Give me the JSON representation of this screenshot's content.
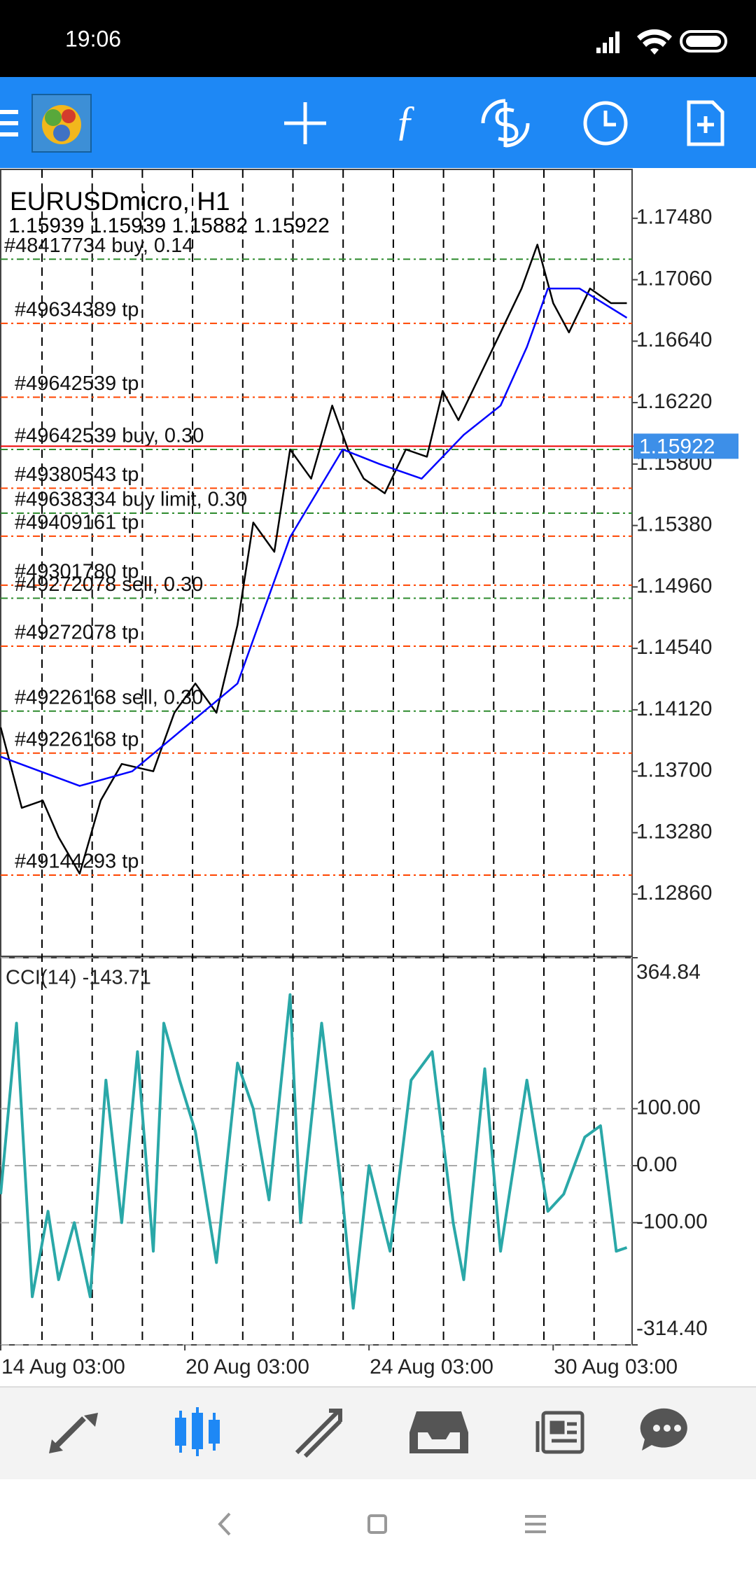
{
  "status_bar": {
    "time": "19:06"
  },
  "chart_data": [
    {
      "type": "line",
      "title": "EURUSDmicro, H1",
      "quote": "1.15939 1.15939 1.15882 1.15922",
      "xlim": [
        0,
        120
      ],
      "ylim": [
        1.12435,
        1.17814
      ],
      "yticks": [
        {
          "value": 1.1748,
          "label": "1.17480"
        },
        {
          "value": 1.1706,
          "label": "1.17060"
        },
        {
          "value": 1.1664,
          "label": "1.16640"
        },
        {
          "value": 1.1622,
          "label": "1.16220"
        },
        {
          "value": 1.158,
          "label": "1.15800"
        },
        {
          "value": 1.1538,
          "label": "1.15380"
        },
        {
          "value": 1.1496,
          "label": "1.14960"
        },
        {
          "value": 1.1454,
          "label": "1.14540"
        },
        {
          "value": 1.1412,
          "label": "1.14120"
        },
        {
          "value": 1.137,
          "label": "1.13700"
        },
        {
          "value": 1.1328,
          "label": "1.13280"
        },
        {
          "value": 1.1286,
          "label": "1.12860"
        }
      ],
      "current_price": 1.15922,
      "series": [
        {
          "color": "#000000",
          "x": [
            0,
            4,
            8,
            11,
            15,
            19,
            23,
            29,
            33,
            37,
            41,
            45,
            48,
            52,
            55,
            59,
            63,
            66,
            69,
            73,
            77,
            81,
            84,
            87,
            91,
            95,
            99,
            102,
            105,
            108,
            112,
            116,
            119
          ],
          "values": [
            1.14,
            1.1345,
            1.135,
            1.1325,
            1.13,
            1.135,
            1.1375,
            1.137,
            1.141,
            1.143,
            1.141,
            1.147,
            1.154,
            1.152,
            1.159,
            1.157,
            1.162,
            1.159,
            1.157,
            1.156,
            1.159,
            1.1585,
            1.163,
            1.161,
            1.164,
            1.167,
            1.17,
            1.173,
            1.169,
            1.167,
            1.17,
            1.169,
            1.169
          ]
        },
        {
          "color": "#0000ff",
          "x": [
            0,
            15,
            25,
            35,
            45,
            50,
            55,
            60,
            65,
            72,
            80,
            88,
            95,
            100,
            104,
            110,
            119
          ],
          "values": [
            1.138,
            1.136,
            1.137,
            1.14,
            1.143,
            1.148,
            1.153,
            1.156,
            1.159,
            1.158,
            1.157,
            1.16,
            1.162,
            1.166,
            1.17,
            1.17,
            1.168
          ]
        }
      ],
      "orders": [
        {
          "label": "#48417734 buy, 0.14",
          "price": 1.172,
          "color": "#2e8b2e"
        },
        {
          "label": "#49634389 tp",
          "price": 1.16762,
          "color": "#ff4500"
        },
        {
          "label": "#49642539 tp",
          "price": 1.16257,
          "color": "#ff4500"
        },
        {
          "label": "#49642539 buy, 0.30",
          "price": 1.159,
          "color": "#2e8b2e"
        },
        {
          "label": "#49380543 tp",
          "price": 1.15635,
          "color": "#ff4500"
        },
        {
          "label": "#49638334 buy limit, 0.30",
          "price": 1.15464,
          "color": "#2e8b2e"
        },
        {
          "label": "#49409161 tp",
          "price": 1.15307,
          "color": "#ff4500"
        },
        {
          "label": "#49301780 tp",
          "price": 1.14972,
          "color": "#ff4500"
        },
        {
          "label": "#49272078 sell, 0.30",
          "price": 1.14883,
          "color": "#2e8b2e"
        },
        {
          "label": "#49272078 tp",
          "price": 1.14555,
          "color": "#ff4500"
        },
        {
          "label": "#49226168 sell, 0.30",
          "price": 1.14111,
          "color": "#2e8b2e"
        },
        {
          "label": "#49226168 tp",
          "price": 1.13824,
          "color": "#ff4500"
        },
        {
          "label": "#49144293 tp",
          "price": 1.1299,
          "color": "#ff4500"
        }
      ]
    },
    {
      "type": "line",
      "title": "CCI(14) -143.71",
      "xlim": [
        0,
        120
      ],
      "ylim": [
        -314.4,
        364.84
      ],
      "yticks": [
        {
          "value": 364.84,
          "label": "364.84"
        },
        {
          "value": 100,
          "label": "100.00"
        },
        {
          "value": 0,
          "label": "0.00"
        },
        {
          "value": -100,
          "label": "-100.00"
        },
        {
          "value": -314.4,
          "label": "-314.40"
        }
      ],
      "xticks": [
        {
          "value": 0,
          "label": "14 Aug 03:00"
        },
        {
          "value": 35,
          "label": "20 Aug 03:00"
        },
        {
          "value": 70,
          "label": "24 Aug 03:00"
        },
        {
          "value": 105,
          "label": "30 Aug 03:00"
        }
      ],
      "series": [
        {
          "color": "#2aa8a8",
          "x": [
            0,
            3,
            6,
            9,
            11,
            14,
            17,
            20,
            23,
            26,
            29,
            31,
            34,
            37,
            41,
            45,
            48,
            51,
            55,
            57,
            61,
            65,
            67,
            70,
            74,
            78,
            82,
            86,
            88,
            92,
            95,
            100,
            104,
            107,
            111,
            114,
            117,
            119
          ],
          "values": [
            -50,
            250,
            -230,
            -80,
            -200,
            -100,
            -230,
            150,
            -100,
            200,
            -150,
            250,
            150,
            60,
            -170,
            180,
            100,
            -60,
            300,
            -100,
            250,
            -60,
            -250,
            0,
            -150,
            150,
            200,
            -100,
            -200,
            170,
            -150,
            150,
            -80,
            -50,
            50,
            70,
            -150,
            -143.71
          ]
        }
      ]
    }
  ]
}
